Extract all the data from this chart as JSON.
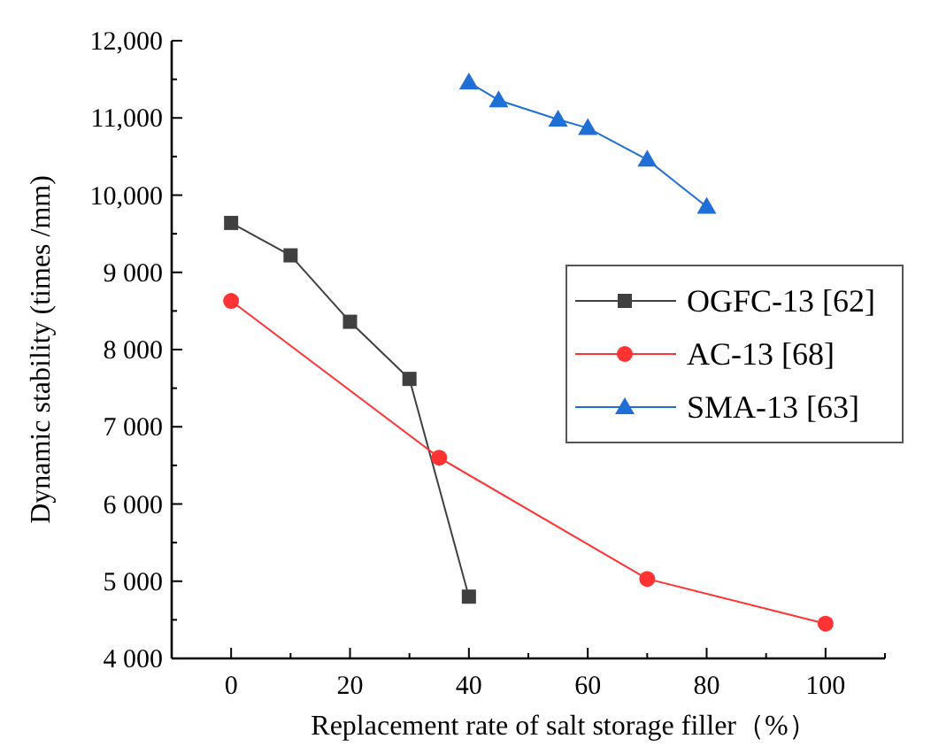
{
  "chart_data": {
    "type": "line",
    "xlabel": "Replacement rate of salt storage filler（%）",
    "ylabel": "Dynamic stability (times /mm)",
    "xlim": [
      -10,
      110
    ],
    "xticks": [
      0,
      20,
      40,
      60,
      80,
      100
    ],
    "ylim": [
      4000,
      12000
    ],
    "yticks": [
      {
        "value": 4000,
        "label": "4 000"
      },
      {
        "value": 5000,
        "label": "5 000"
      },
      {
        "value": 6000,
        "label": "6 000"
      },
      {
        "value": 7000,
        "label": "7 000"
      },
      {
        "value": 8000,
        "label": "8 000"
      },
      {
        "value": 9000,
        "label": "9 000"
      },
      {
        "value": 10000,
        "label": "10,000"
      },
      {
        "value": 11000,
        "label": "11,000"
      },
      {
        "value": 12000,
        "label": "12,000"
      }
    ],
    "grid": false,
    "legend": "right",
    "series": [
      {
        "name": "OGFC-13 [62]",
        "color": "#404040",
        "marker": "square",
        "x": [
          0,
          10,
          20,
          30,
          40
        ],
        "values": [
          9640,
          9220,
          8360,
          7620,
          4800
        ]
      },
      {
        "name": "AC-13 [68]",
        "color": "#ff3333",
        "marker": "circle",
        "x": [
          0,
          35,
          70,
          100
        ],
        "values": [
          8630,
          6600,
          5030,
          4450
        ]
      },
      {
        "name": "SMA-13 [63]",
        "color": "#1f6fd6",
        "marker": "triangle",
        "x": [
          40,
          45,
          55,
          60,
          70,
          80
        ],
        "values": [
          11460,
          11230,
          10980,
          10870,
          10460,
          9850
        ]
      }
    ]
  }
}
